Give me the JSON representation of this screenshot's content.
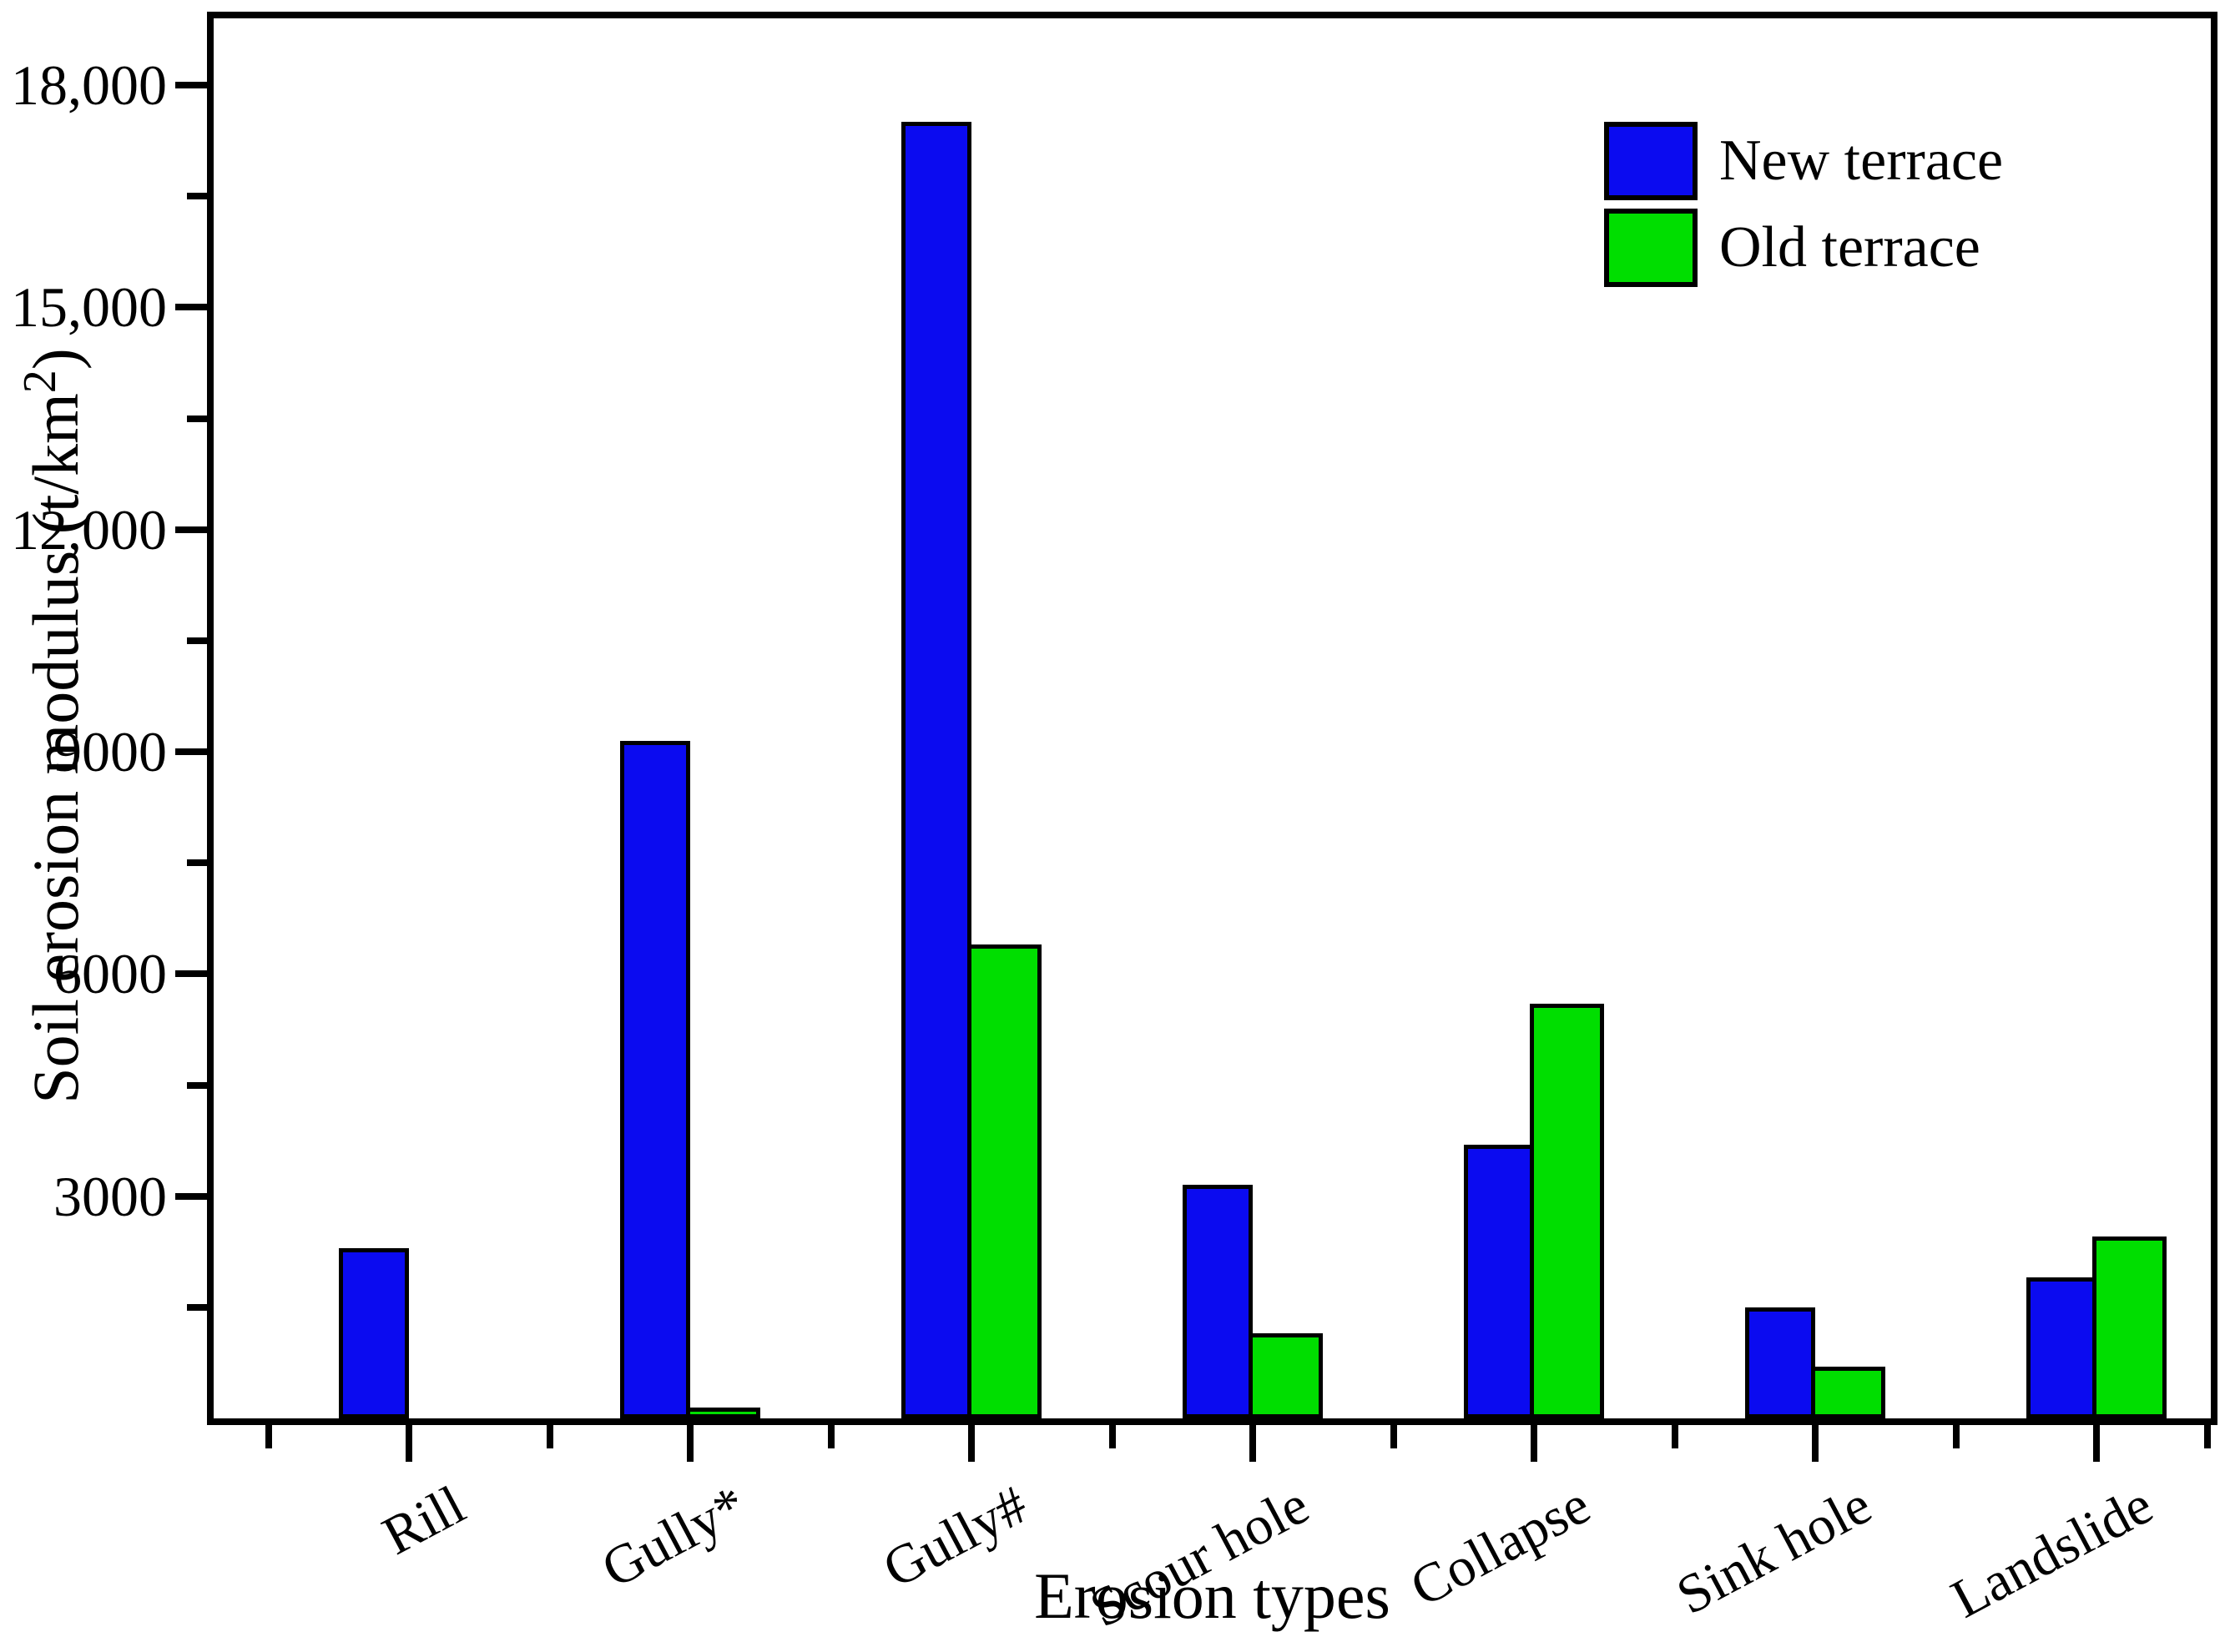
{
  "figure": {
    "background": "#ffffff"
  },
  "chart_data": {
    "type": "bar",
    "title": "",
    "xlabel": "Erosion types",
    "ylabel": "Soil erosion modulus (t/km²)",
    "ylabel_parts": {
      "prefix": "Soil erosion modulus (t/km",
      "superscript": "2",
      "suffix": ")"
    },
    "categories": [
      "Rill",
      "Gully*",
      "Gully#",
      "Scour hole",
      "Collapse",
      "Sink hole",
      "Landslide"
    ],
    "series": [
      {
        "name": "New terrace",
        "color": "#0b0bf0",
        "values": [
          2300,
          9150,
          17500,
          3150,
          3700,
          1500,
          1900
        ]
      },
      {
        "name": "Old terrace",
        "color": "#00de00",
        "values": [
          0,
          150,
          6400,
          1150,
          5600,
          700,
          2450
        ]
      }
    ],
    "ylim": [
      0,
      19000
    ],
    "yticks": {
      "major_values": [
        3000,
        6000,
        9000,
        12000,
        15000,
        18000
      ],
      "major_labels": [
        "3000",
        "6000",
        "9000",
        "12,000",
        "15,000",
        "18,000"
      ],
      "minor_values": [
        1500,
        4500,
        7500,
        10500,
        13500,
        16500
      ]
    },
    "xticks": {
      "minor_between_categories": true
    },
    "grid": false,
    "legend_position": "top-right",
    "bar_edge_color": "#000000",
    "axis_color": "#000000"
  }
}
